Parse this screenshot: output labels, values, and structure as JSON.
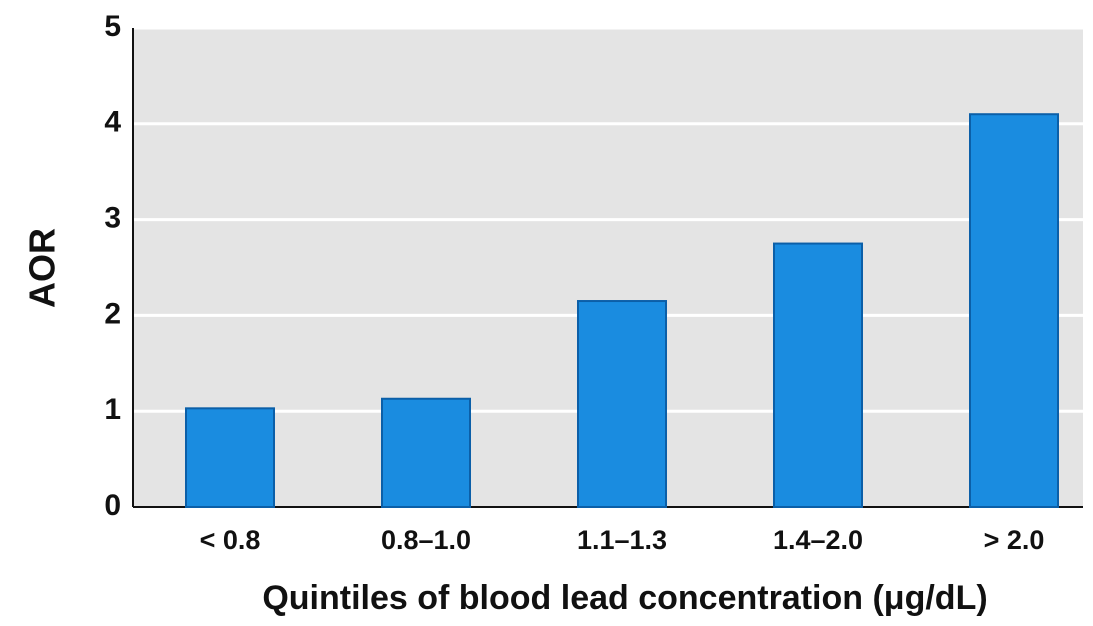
{
  "chart_data": {
    "type": "bar",
    "x_label": "Quintiles of blood lead concentration (μg/dL)",
    "y_label": "AOR",
    "categories": [
      "< 0.8",
      "0.8–1.0",
      "1.1–1.3",
      "1.4–2.0",
      "> 2.0"
    ],
    "values": [
      1.03,
      1.13,
      2.15,
      2.75,
      4.1
    ],
    "color": "#1a8ce0",
    "ylim": [
      0,
      5
    ],
    "yticks": [
      0,
      1,
      2,
      3,
      4,
      5
    ],
    "grid": true
  }
}
